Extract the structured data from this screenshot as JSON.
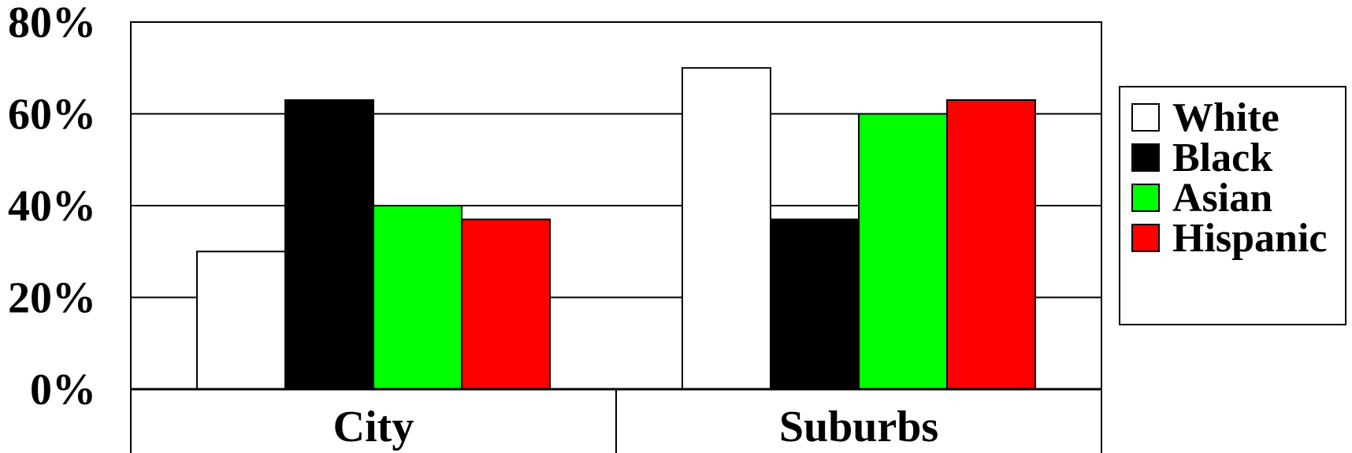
{
  "chart_data": {
    "type": "bar",
    "title": "",
    "xlabel": "",
    "ylabel": "",
    "categories": [
      "City",
      "Suburbs"
    ],
    "series": [
      {
        "name": "White",
        "color": "#ffffff",
        "values": [
          30,
          70
        ]
      },
      {
        "name": "Black",
        "color": "#000000",
        "values": [
          63,
          37
        ]
      },
      {
        "name": "Asian",
        "color": "#00ff00",
        "values": [
          40,
          60
        ]
      },
      {
        "name": "Hispanic",
        "color": "#ff0000",
        "values": [
          37,
          63
        ]
      }
    ],
    "ylim": [
      0,
      80
    ],
    "yticks": [
      0,
      20,
      40,
      60,
      80
    ],
    "ytick_labels": [
      "0%",
      "20%",
      "40%",
      "60%",
      "80%"
    ],
    "grid": true,
    "legend": "right"
  }
}
